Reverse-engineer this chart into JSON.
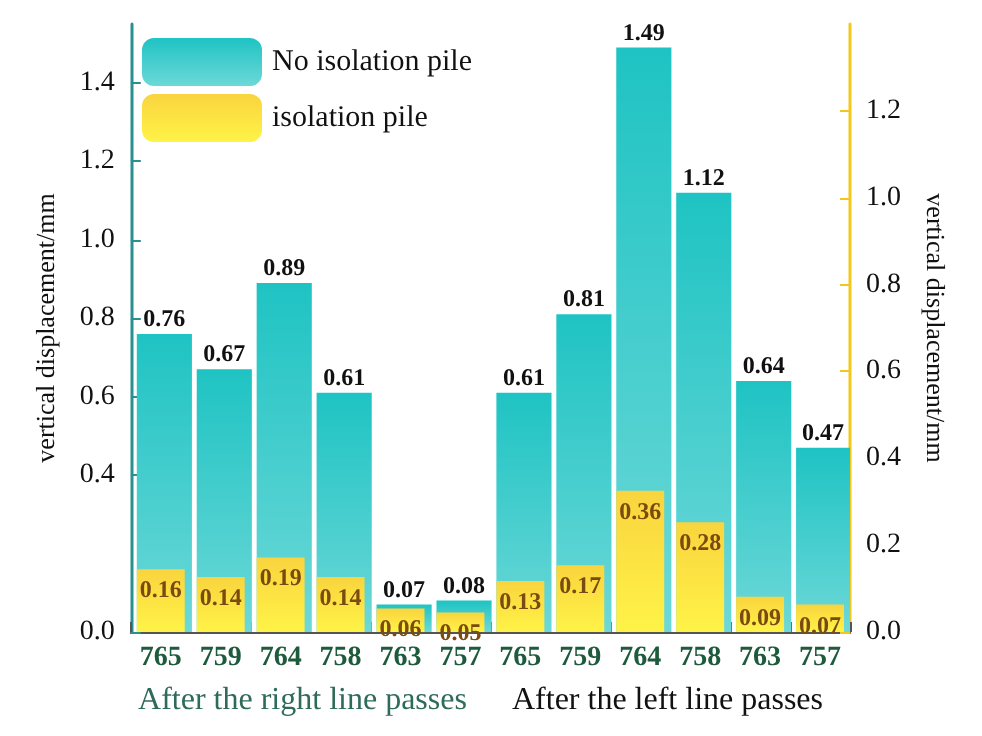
{
  "chart_data": {
    "type": "bar",
    "ylabel": "vertical displacement/mm",
    "y2label": "vertical displacement/mm",
    "categories": [
      "765",
      "759",
      "764",
      "758",
      "763",
      "757",
      "765",
      "759",
      "764",
      "758",
      "763",
      "757"
    ],
    "series": [
      {
        "name": "No isolation pile",
        "color": "#1fc3c3",
        "values": [
          0.76,
          0.67,
          0.89,
          0.61,
          0.07,
          0.08,
          0.61,
          0.81,
          1.49,
          1.12,
          0.64,
          0.47
        ]
      },
      {
        "name": "isolation pile",
        "color": "#f9d43e",
        "values": [
          0.16,
          0.14,
          0.19,
          0.14,
          0.06,
          0.05,
          0.13,
          0.17,
          0.36,
          0.28,
          0.09,
          0.07
        ]
      }
    ],
    "ylim": [
      0,
      1.55
    ],
    "yticks": [
      {
        "value": 0,
        "label": "0.0"
      },
      0.4,
      0.6,
      0.8,
      {
        "value": 1,
        "label": "1.0"
      },
      1.2,
      1.4
    ],
    "y2lim": [
      0,
      1.4
    ],
    "y2ticks": [
      {
        "value": 0,
        "label": "0.0"
      },
      0.2,
      0.4,
      0.6,
      0.8,
      {
        "value": 1,
        "label": "1.0"
      },
      1.2
    ],
    "annotations": [
      "After the right line passes",
      "After the left line passes"
    ],
    "data_labels": true,
    "grid": false,
    "legend": "top left"
  }
}
